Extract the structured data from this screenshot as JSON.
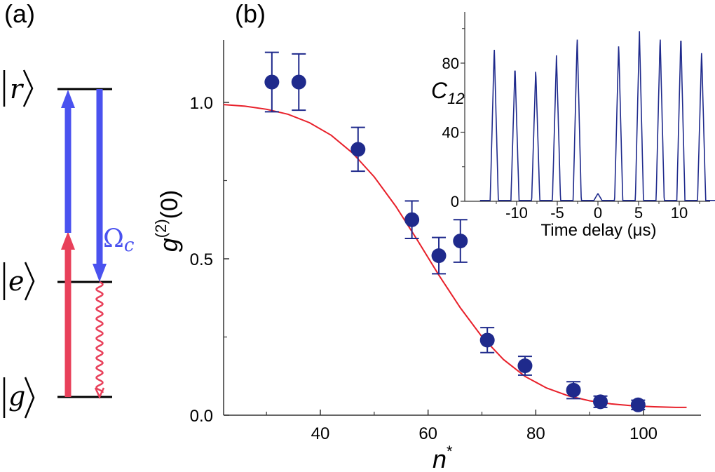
{
  "panels": {
    "a_label": "(a)",
    "b_label": "(b)"
  },
  "level_diagram": {
    "levels": [
      {
        "name": "r",
        "label": "r"
      },
      {
        "name": "e",
        "label": "e"
      },
      {
        "name": "g",
        "label": "g"
      }
    ],
    "coupling_label": "Ω",
    "coupling_subscript": "c",
    "colors": {
      "probe": "#e8405a",
      "coupling": "#4a52ef",
      "level_line": "#000000"
    }
  },
  "chart_data": [
    {
      "type": "scatter",
      "xlabel": "n",
      "xlabel_superscript": "*",
      "ylabel": "g",
      "ylabel_superscript": "(2)",
      "ylabel_suffix": "(0)",
      "xlim": [
        22,
        108
      ],
      "ylim": [
        0.0,
        1.2
      ],
      "xticks": [
        40,
        60,
        80,
        100
      ],
      "xtick_labels": [
        "40",
        "60",
        "80",
        "100"
      ],
      "yticks": [
        0.0,
        0.5,
        1.0
      ],
      "ytick_labels": [
        "0.0",
        "0.5",
        "1.0"
      ],
      "grid": false,
      "series": [
        {
          "type": "scatter",
          "color": "#1f2a8c",
          "points": [
            {
              "x": 31,
              "y": 1.065,
              "err": 0.095
            },
            {
              "x": 36,
              "y": 1.065,
              "err": 0.09
            },
            {
              "x": 47,
              "y": 0.85,
              "err": 0.07
            },
            {
              "x": 57,
              "y": 0.625,
              "err": 0.06
            },
            {
              "x": 62,
              "y": 0.51,
              "err": 0.058
            },
            {
              "x": 66,
              "y": 0.557,
              "err": 0.068
            },
            {
              "x": 71,
              "y": 0.24,
              "err": 0.04
            },
            {
              "x": 78,
              "y": 0.158,
              "err": 0.03
            },
            {
              "x": 87,
              "y": 0.08,
              "err": 0.027
            },
            {
              "x": 92,
              "y": 0.043,
              "err": 0.018
            },
            {
              "x": 99,
              "y": 0.033,
              "err": 0.015
            }
          ]
        },
        {
          "type": "line",
          "color": "#e8202a",
          "x": [
            22,
            26,
            30,
            34,
            38,
            42,
            46,
            50,
            54,
            58,
            62,
            66,
            70,
            74,
            78,
            82,
            86,
            90,
            94,
            98,
            102,
            106,
            108
          ],
          "y": [
            0.993,
            0.988,
            0.978,
            0.962,
            0.935,
            0.895,
            0.838,
            0.762,
            0.668,
            0.56,
            0.448,
            0.343,
            0.251,
            0.178,
            0.124,
            0.087,
            0.062,
            0.046,
            0.036,
            0.03,
            0.027,
            0.025,
            0.025
          ]
        }
      ]
    },
    {
      "type": "line",
      "role": "inset",
      "ylabel": "C",
      "ylabel_subscript": "12",
      "xlabel": "Time delay (μs)",
      "xlim": [
        -14.5,
        14.5
      ],
      "ylim": [
        0,
        108
      ],
      "xticks": [
        -10,
        -5,
        0,
        5,
        10
      ],
      "xtick_labels": [
        "-10",
        "-5",
        "0",
        "5",
        "10"
      ],
      "yticks": [
        0,
        40,
        80
      ],
      "ytick_labels": [
        "0",
        "40",
        "80"
      ],
      "color": "#1f2a8c",
      "peak_width": 0.5,
      "peaks": [
        {
          "x": -12.75,
          "y": 89
        },
        {
          "x": -10.2,
          "y": 78
        },
        {
          "x": -7.65,
          "y": 76
        },
        {
          "x": -5.1,
          "y": 84
        },
        {
          "x": -2.55,
          "y": 95
        },
        {
          "x": 0.0,
          "y": 4
        },
        {
          "x": 2.55,
          "y": 91
        },
        {
          "x": 5.1,
          "y": 98
        },
        {
          "x": 7.65,
          "y": 95
        },
        {
          "x": 10.2,
          "y": 96
        },
        {
          "x": 12.75,
          "y": 87
        }
      ]
    }
  ]
}
